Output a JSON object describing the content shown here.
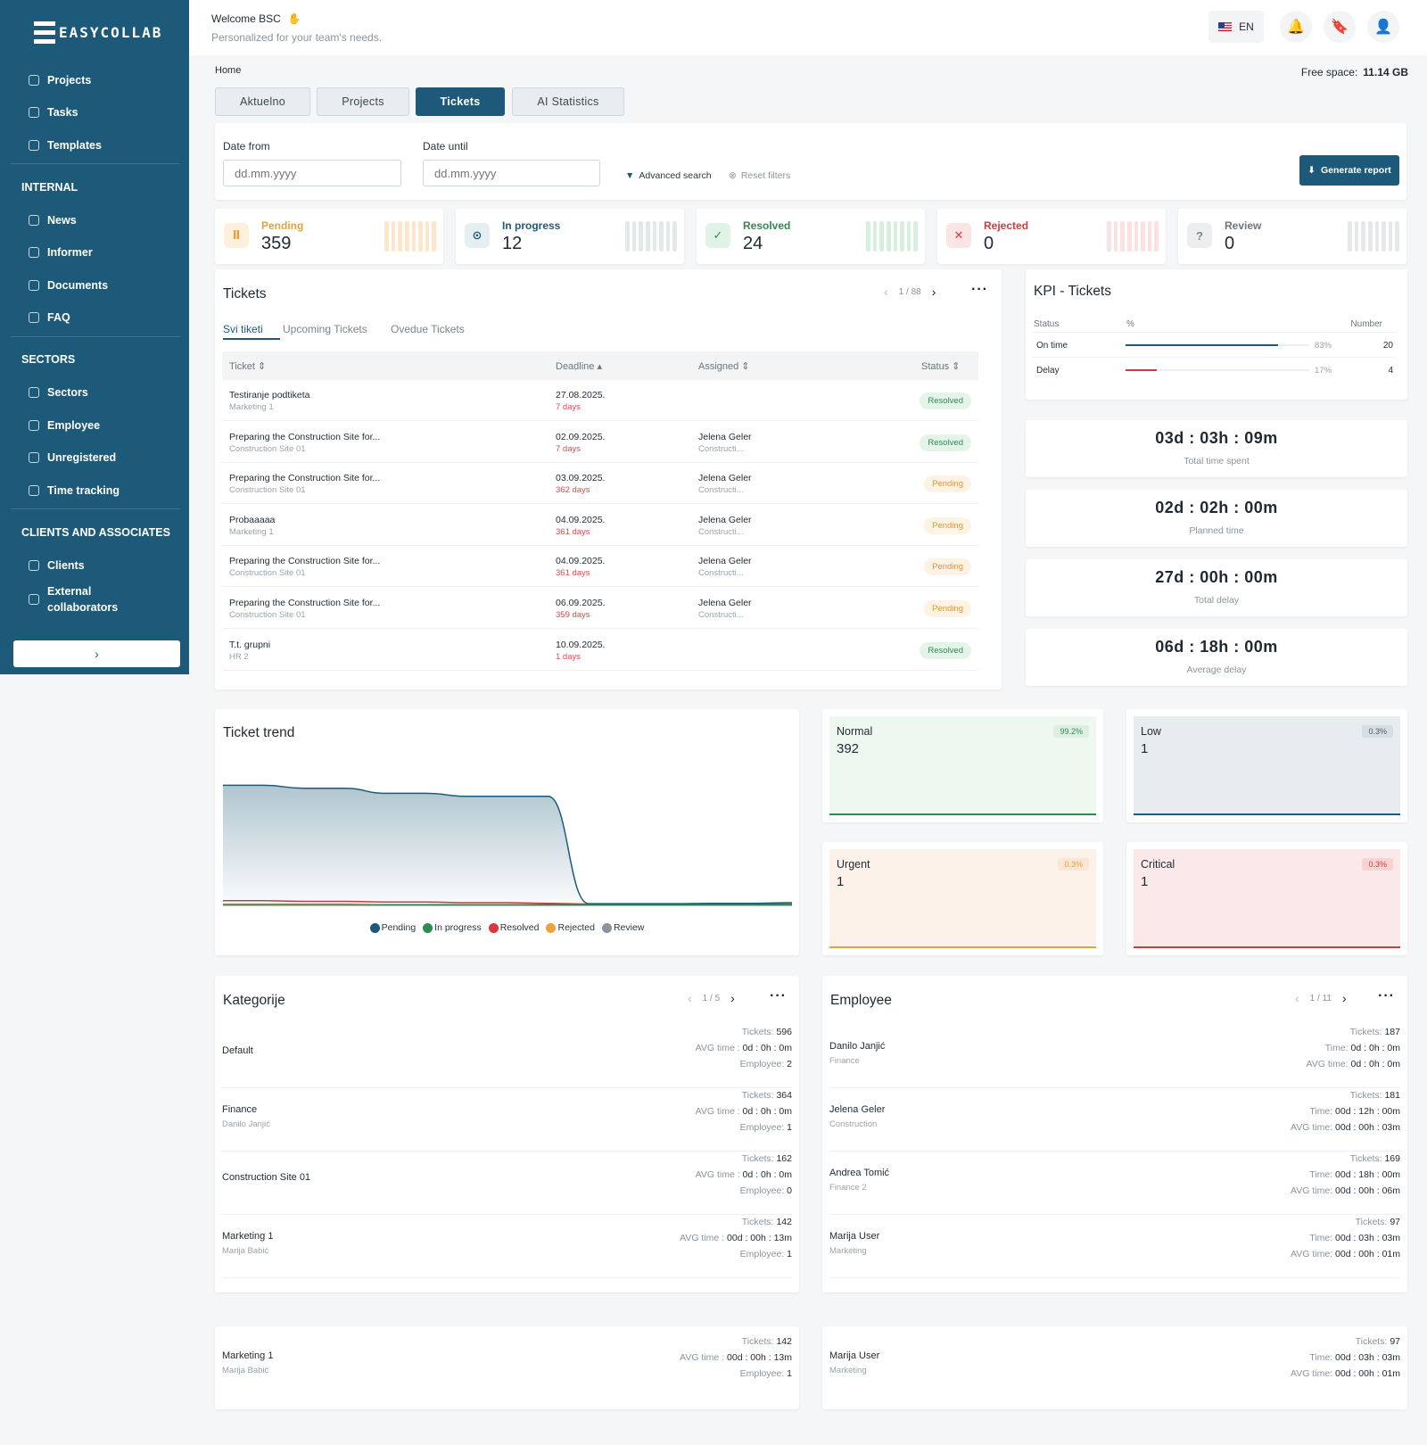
{
  "brand": {
    "logo_text": "EASYCOLLAB"
  },
  "sidebar": {
    "top_items": [
      {
        "label": "Projects"
      },
      {
        "label": "Tasks"
      },
      {
        "label": "Templates"
      }
    ],
    "sections": [
      {
        "title": "INTERNAL",
        "items": [
          {
            "label": "News"
          },
          {
            "label": "Informer"
          },
          {
            "label": "Documents"
          },
          {
            "label": "FAQ"
          }
        ]
      },
      {
        "title": "SECTORS",
        "items": [
          {
            "label": "Sectors"
          },
          {
            "label": "Employee"
          },
          {
            "label": "Unregistered"
          },
          {
            "label": "Time tracking"
          }
        ]
      },
      {
        "title": "CLIENTS AND ASSOCIATES",
        "items": [
          {
            "label": "Clients"
          },
          {
            "label": "External collaborators"
          }
        ]
      }
    ],
    "collapse_icon": "›"
  },
  "header": {
    "welcome": "Welcome BSC",
    "wave": "✋",
    "subtitle": "Personalized for your team's needs.",
    "lang": "EN"
  },
  "breadcrumb": "Home",
  "free_space": {
    "label": "Free space:",
    "value": "11.14 GB"
  },
  "tabs": [
    {
      "label": "Aktuelno"
    },
    {
      "label": "Projects"
    },
    {
      "label": "Tickets"
    },
    {
      "label": "AI Statistics"
    }
  ],
  "filters": {
    "date_from_label": "Date from",
    "date_until_label": "Date until",
    "date_placeholder": "dd.mm.yyyy",
    "advanced": "Advanced search",
    "reset": "Reset filters",
    "generate": "Generate report"
  },
  "stats": [
    {
      "label": "Pending",
      "value": "359",
      "color": "#e6a13a"
    },
    {
      "label": "In progress",
      "value": "12",
      "color": "#1d5a79"
    },
    {
      "label": "Resolved",
      "value": "24",
      "color": "#2f8a53"
    },
    {
      "label": "Rejected",
      "value": "0",
      "color": "#d9363e"
    },
    {
      "label": "Review",
      "value": "0",
      "color": "#7d868c"
    }
  ],
  "tickets": {
    "title": "Tickets",
    "pager": "1 / 88",
    "subtabs": [
      {
        "label": "Svi tiketi"
      },
      {
        "label": "Upcoming Tickets"
      },
      {
        "label": "Ovedue Tickets"
      }
    ],
    "columns": {
      "ticket": "Ticket ⇕",
      "deadline": "Deadline ▴",
      "assigned": "Assigned ⇕",
      "status": "Status ⇕"
    },
    "rows": [
      {
        "name": "Testiranje podtiketa",
        "sub": "Marketing 1",
        "date": "27.08.2025.",
        "days": "7 days",
        "assignee": "",
        "assignee_sub": "",
        "status": "Resolved"
      },
      {
        "name": "Preparing the Construction Site for...",
        "sub": "Construction Site 01",
        "date": "02.09.2025.",
        "days": "7 days",
        "assignee": "Jelena Geler",
        "assignee_sub": "Constructi...",
        "status": "Resolved"
      },
      {
        "name": "Preparing the Construction Site for...",
        "sub": "Construction Site 01",
        "date": "03.09.2025.",
        "days": "362 days",
        "assignee": "Jelena Geler",
        "assignee_sub": "Constructi...",
        "status": "Pending"
      },
      {
        "name": "Probaaaaa",
        "sub": "Marketing 1",
        "date": "04.09.2025.",
        "days": "361 days",
        "assignee": "Jelena Geler",
        "assignee_sub": "Constructi...",
        "status": "Pending"
      },
      {
        "name": "Preparing the Construction Site for...",
        "sub": "Construction Site 01",
        "date": "04.09.2025.",
        "days": "361 days",
        "assignee": "Jelena Geler",
        "assignee_sub": "Constructi...",
        "status": "Pending"
      },
      {
        "name": "Preparing the Construction Site for...",
        "sub": "Construction Site 01",
        "date": "06.09.2025.",
        "days": "359 days",
        "assignee": "Jelena Geler",
        "assignee_sub": "Constructi...",
        "status": "Pending"
      },
      {
        "name": "T.t. grupni",
        "sub": "HR 2",
        "date": "10.09.2025.",
        "days": "1 days",
        "assignee": "",
        "assignee_sub": "",
        "status": "Resolved"
      }
    ]
  },
  "kpi": {
    "title": "KPI - Tickets",
    "headers": {
      "status": "Status",
      "pct": "%",
      "number": "Number"
    },
    "rows": [
      {
        "name": "On time",
        "pct": "83%",
        "fraction": 0.83,
        "number": "20",
        "color": "#1d5a79"
      },
      {
        "name": "Delay",
        "pct": "17%",
        "fraction": 0.17,
        "number": "4",
        "color": "#d9363e"
      }
    ]
  },
  "times": [
    {
      "value": "03d : 03h : 09m",
      "label": "Total time spent"
    },
    {
      "value": "02d : 02h : 00m",
      "label": "Planned time"
    },
    {
      "value": "27d : 00h : 00m",
      "label": "Total delay"
    },
    {
      "value": "06d : 18h : 00m",
      "label": "Average delay"
    }
  ],
  "trend": {
    "title": "Ticket trend"
  },
  "chart_data": {
    "type": "area",
    "title": "Ticket trend",
    "series": [
      {
        "name": "Pending",
        "color": "#1d5a79",
        "values": [
          359,
          359,
          350,
          350,
          335,
          335,
          326,
          326,
          326,
          5,
          5,
          5,
          6,
          6,
          8
        ]
      },
      {
        "name": "In progress",
        "color": "#2f8a53",
        "values": [
          3,
          3,
          3,
          3,
          2,
          2,
          2,
          2,
          2,
          2,
          2,
          2,
          2,
          2,
          2
        ]
      },
      {
        "name": "Resolved",
        "color": "#d9363e",
        "values": [
          14,
          14,
          12,
          12,
          10,
          10,
          8,
          8,
          6,
          4,
          4,
          4,
          4,
          4,
          4
        ]
      },
      {
        "name": "Rejected",
        "color": "#f0a23a",
        "values": [
          0,
          0,
          0,
          0,
          0,
          0,
          0,
          0,
          0,
          0,
          0,
          0,
          0,
          0,
          0
        ]
      },
      {
        "name": "Review",
        "color": "#8a949c",
        "values": [
          0,
          0,
          0,
          0,
          0,
          0,
          0,
          0,
          0,
          0,
          0,
          0,
          0,
          0,
          0
        ]
      }
    ],
    "ylim": [
      0,
      400
    ]
  },
  "priorities": [
    {
      "name": "Normal",
      "value": "392",
      "pct": "99.2%",
      "bg": "#eef8f1",
      "line": "#2f8a53",
      "pctbg": "#dcefe2",
      "pctcolor": "#2f8a53"
    },
    {
      "name": "Low",
      "value": "1",
      "pct": "0.3%",
      "bg": "#e7ecef",
      "line": "#1d5a79",
      "pctbg": "#d6dee3",
      "pctcolor": "#4d5a63"
    },
    {
      "name": "Urgent",
      "value": "1",
      "pct": "0.3%",
      "bg": "#fdf2ea",
      "line": "#e6a13a",
      "pctbg": "#fbe6d5",
      "pctcolor": "#e6a13a"
    },
    {
      "name": "Critical",
      "value": "1",
      "pct": "0.3%",
      "bg": "#fbe8e8",
      "line": "#d9363e",
      "pctbg": "#f7d4d4",
      "pctcolor": "#d9363e"
    }
  ],
  "categories": {
    "title": "Kategorije",
    "pager": "1 / 5",
    "rows": [
      {
        "name": "Default",
        "sub": "",
        "tickets": "596",
        "avg": "0d : 0h : 0m",
        "employee": "2"
      },
      {
        "name": "Finance",
        "sub": "Danilo Janjić",
        "tickets": "364",
        "avg": "0d : 0h : 0m",
        "employee": "1"
      },
      {
        "name": "Construction Site 01",
        "sub": "",
        "tickets": "162",
        "avg": "0d : 0h : 0m",
        "employee": "0"
      },
      {
        "name": "Marketing 1",
        "sub": "Marija Babić",
        "tickets": "142",
        "avg": "00d : 00h : 13m",
        "employee": "1"
      }
    ],
    "extra": {
      "name": "Marketing 1",
      "sub": "Marija Babić",
      "tickets": "142",
      "avg": "00d : 00h : 13m",
      "employee": "1"
    },
    "labels": {
      "tickets": "Tickets:",
      "avg": "AVG time :",
      "employee": "Employee:"
    }
  },
  "employees": {
    "title": "Employee",
    "pager": "1 / 11",
    "rows": [
      {
        "name": "Danilo Janjić",
        "sub": "Finance",
        "tickets": "187",
        "time": "0d : 0h : 0m",
        "avg": "0d : 0h : 0m"
      },
      {
        "name": "Jelena Geler",
        "sub": "Construction",
        "tickets": "181",
        "time": "00d : 12h : 00m",
        "avg": "00d : 00h : 03m"
      },
      {
        "name": "Andrea Tomić",
        "sub": "Finance 2",
        "tickets": "169",
        "time": "00d : 18h : 00m",
        "avg": "00d : 00h : 06m"
      },
      {
        "name": "Marija User",
        "sub": "Marketing",
        "tickets": "97",
        "time": "00d : 03h : 03m",
        "avg": "00d : 00h : 01m"
      }
    ],
    "extra": {
      "name": "Marija User",
      "sub": "Marketing",
      "tickets": "97",
      "time": "00d : 03h : 03m",
      "avg": "00d : 00h : 01m"
    },
    "labels": {
      "tickets": "Tickets:",
      "time": "Time:",
      "avg": "AVG time:"
    }
  }
}
